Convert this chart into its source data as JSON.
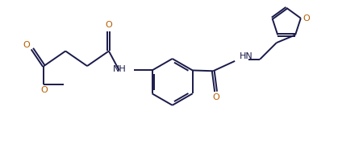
{
  "bg_color": "#ffffff",
  "line_color": "#1a1a4a",
  "text_color": "#1a1a4a",
  "o_color": "#b85c00",
  "bond_lw": 1.4,
  "figsize": [
    4.19,
    1.79
  ],
  "dpi": 100,
  "xlim": [
    0,
    10
  ],
  "ylim": [
    0,
    4.3
  ]
}
